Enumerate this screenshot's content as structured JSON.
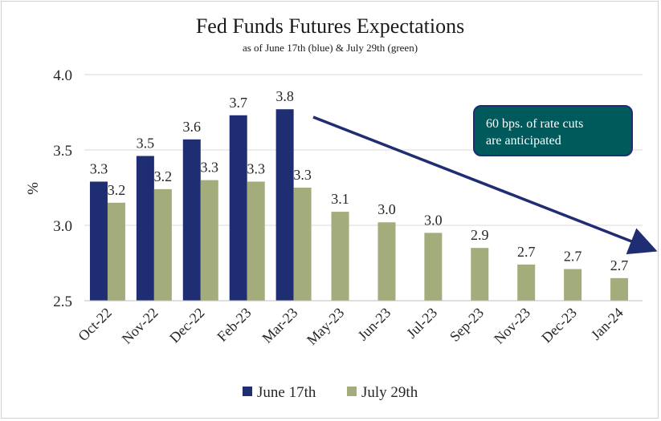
{
  "chart_data": {
    "type": "bar",
    "title": "Fed Funds Futures Expectations",
    "subtitle": "as of June 17th (blue) & July 29th (green)",
    "ylabel": "%",
    "xlabel": "",
    "ylim": [
      2.5,
      4.0
    ],
    "yticks": [
      "2.5",
      "3.0",
      "3.5",
      "4.0"
    ],
    "grid": true,
    "legend": "bottom",
    "categories": [
      "Oct-22",
      "Nov-22",
      "Dec-22",
      "Feb-23",
      "Mar-23",
      "May-23",
      "Jun-23",
      "Jul-23",
      "Sep-23",
      "Nov-23",
      "Dec-23",
      "Jan-24"
    ],
    "series": [
      {
        "name": "June 17th",
        "color": "#1f2d72",
        "values": [
          3.29,
          3.46,
          3.57,
          3.73,
          3.77,
          null,
          null,
          null,
          null,
          null,
          null,
          null
        ],
        "labels": [
          "3.3",
          "3.5",
          "3.6",
          "3.7",
          "3.8",
          "",
          "",
          "",
          "",
          "",
          "",
          ""
        ]
      },
      {
        "name": "July 29th",
        "color": "#a3ad7b",
        "values": [
          3.15,
          3.24,
          3.3,
          3.29,
          3.25,
          3.09,
          3.02,
          2.95,
          2.85,
          2.74,
          2.71,
          2.65
        ],
        "labels": [
          "3.2",
          "3.2",
          "3.3",
          "3.3",
          "3.3",
          "3.1",
          "3.0",
          "3.0",
          "2.9",
          "2.7",
          "2.7",
          "2.7"
        ]
      }
    ],
    "annotation": {
      "text_lines": [
        "60 bps. of rate cuts",
        "are anticipated"
      ],
      "box_color": "#005a5b",
      "arrow_color": "#1f2d72"
    }
  }
}
